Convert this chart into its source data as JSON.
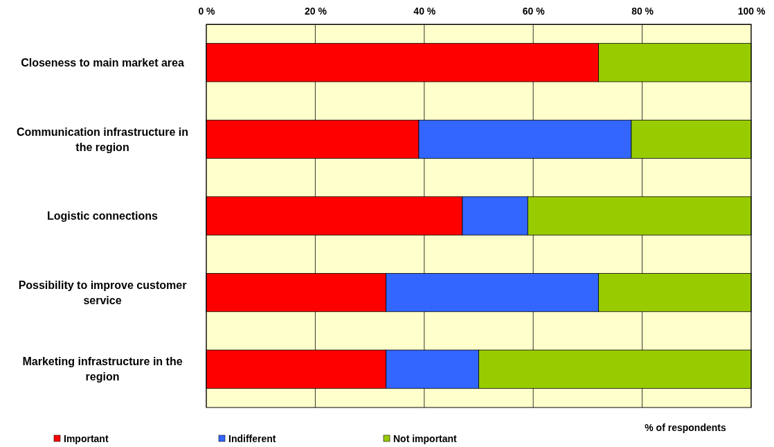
{
  "chart_data": {
    "type": "bar",
    "orientation": "horizontal",
    "stacked": true,
    "categories": [
      "Closeness to main market area",
      "Communication infrastructure in the region",
      "Logistic connections",
      "Possibility to improve customer service",
      "Marketing infrastructure in the region"
    ],
    "series": [
      {
        "name": "Important",
        "color": "#ff0000",
        "values": [
          72,
          39,
          47,
          33,
          33
        ]
      },
      {
        "name": "Indifferent",
        "color": "#3366ff",
        "values": [
          0,
          39,
          12,
          39,
          17
        ]
      },
      {
        "name": "Not important",
        "color": "#99cc00",
        "values": [
          28,
          22,
          41,
          28,
          50
        ]
      }
    ],
    "xlim": [
      0,
      100
    ],
    "xticks": [
      {
        "value": 0,
        "label": "0 %"
      },
      {
        "value": 20,
        "label": "20 %"
      },
      {
        "value": 40,
        "label": "40 %"
      },
      {
        "value": 60,
        "label": "60 %"
      },
      {
        "value": 80,
        "label": "80 %"
      },
      {
        "value": 100,
        "label": "100 %"
      }
    ],
    "xlabel": "% of respondents",
    "grid": "x",
    "legend": "bottom"
  }
}
